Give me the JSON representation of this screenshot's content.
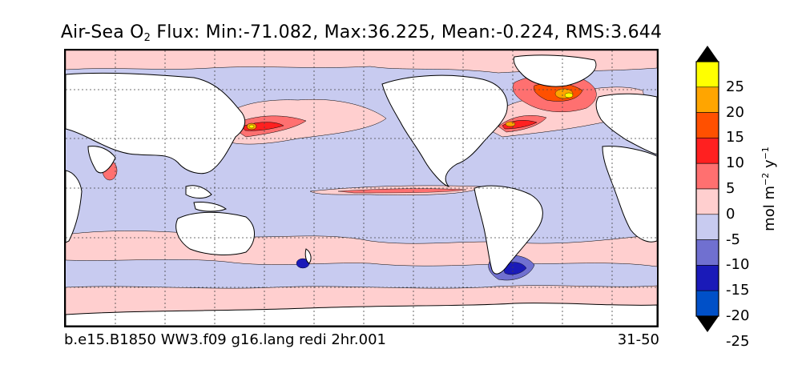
{
  "figure": {
    "title_prefix": "Air-Sea O",
    "title_subscript": "2",
    "title_suffix": " Flux: Min:-71.082, Max:36.225, Mean:-0.224, RMS:3.644",
    "caption_left": "b.e15.B1850 WW3.f09 g16.lang redi 2hr.001",
    "caption_right": "31-50"
  },
  "colorbar": {
    "label_base": "mol m",
    "label_exp1": "−2",
    "label_mid": " y",
    "label_exp2": "−1",
    "ticks": [
      "25",
      "20",
      "15",
      "10",
      "5",
      "0",
      "-5",
      "-10",
      "-15",
      "-20",
      "-25"
    ],
    "levels": [
      {
        "range": "> 25",
        "color": "#ffff00"
      },
      {
        "range": "20 to 25",
        "color": "#ffa500"
      },
      {
        "range": "15 to 20",
        "color": "#ff5000"
      },
      {
        "range": "10 to 15",
        "color": "#ff2020"
      },
      {
        "range": "5 to 10",
        "color": "#ff7070"
      },
      {
        "range": "0 to 5",
        "color": "#ffcfcf"
      },
      {
        "range": "-5 to 0",
        "color": "#c8cbf0"
      },
      {
        "range": "-10 to -5",
        "color": "#7070d0"
      },
      {
        "range": "-15 to -10",
        "color": "#1a1ab8"
      },
      {
        "range": "-20 to -15",
        "color": "#0050c8"
      },
      {
        "range": "-25 to -20",
        "color": "#00a0e6"
      },
      {
        "range": "< -25",
        "color": "#00ffff"
      }
    ],
    "extend": "both"
  },
  "map": {
    "projection": "cylindrical equidistant",
    "gridlines": "dotted",
    "land_color": "#ffffff",
    "coastline_color": "#000000"
  }
}
